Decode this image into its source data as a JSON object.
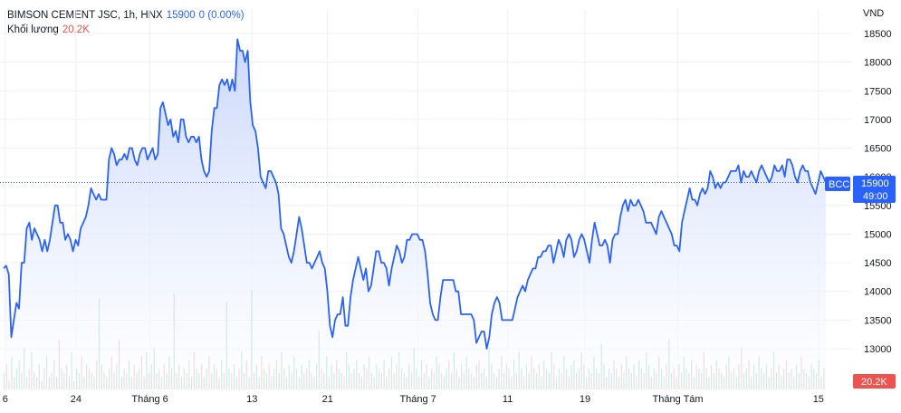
{
  "header": {
    "symbol_label": "BIMSON CEMENT JSC, 1h, HNX",
    "last_price": "15900",
    "change": "0 (0.00%)",
    "volume_label": "Khối lượng",
    "volume_value": "20.2K"
  },
  "price_axis": {
    "unit": "VND",
    "current_symbol_tag": "BCC",
    "current_price_tag": "15900",
    "countdown_tag": "49:00",
    "volume_tag": "20.2K"
  },
  "colors": {
    "line": "#2962ff",
    "area_top": "#c9d6fb",
    "area_bottom": "#ffffff",
    "vol_up": "#26a69a",
    "vol_down": "#ef5350",
    "grid": "#eef0f4"
  },
  "chart_data": {
    "type": "line",
    "title": "BIMSON CEMENT JSC, 1h, HNX",
    "x_tick_labels": [
      "6",
      "24",
      "Tháng 6",
      "13",
      "21",
      "Tháng 7",
      "11",
      "19",
      "Tháng Tám",
      "15"
    ],
    "y_tick_labels": [
      "13000",
      "13500",
      "14000",
      "14500",
      "15000",
      "15500",
      "16000",
      "16500",
      "17000",
      "17500",
      "18000",
      "18500"
    ],
    "ylim": [
      12600,
      18700
    ],
    "last_value": 15900,
    "grid": true,
    "series": [
      {
        "values": [
          14400,
          14450,
          14300,
          13200,
          13500,
          13800,
          13700,
          14500,
          14500,
          15100,
          15200,
          14900,
          15100,
          15000,
          14900,
          14700,
          14900,
          14700,
          14900,
          15200,
          15500,
          15500,
          15200,
          15200,
          14900,
          15000,
          14900,
          14700,
          14900,
          14800,
          15100,
          15200,
          15300,
          15500,
          15800,
          15700,
          15600,
          15700,
          15600,
          15600,
          15600,
          16300,
          16500,
          16400,
          16200,
          16300,
          16300,
          16400,
          16300,
          16500,
          16500,
          16300,
          16200,
          16400,
          16500,
          16500,
          16300,
          16400,
          16500,
          16300,
          16400,
          17200,
          17300,
          17100,
          16900,
          17000,
          16700,
          16800,
          16600,
          17000,
          17000,
          16700,
          16600,
          16700,
          16700,
          16600,
          16700,
          16300,
          16100,
          16000,
          16100,
          16800,
          17200,
          17200,
          17600,
          17700,
          17600,
          17700,
          17500,
          17700,
          17500,
          18400,
          18200,
          18200,
          18000,
          18200,
          17300,
          16900,
          16800,
          16500,
          16000,
          15900,
          15800,
          16100,
          16100,
          16000,
          15900,
          15700,
          15100,
          15000,
          14800,
          14600,
          14500,
          14700,
          15000,
          15300,
          15100,
          14800,
          14500,
          14500,
          14400,
          14500,
          14600,
          14700,
          14500,
          14400,
          14000,
          13400,
          13200,
          13500,
          13600,
          13600,
          13900,
          13400,
          13400,
          13900,
          14200,
          14400,
          14600,
          14400,
          14200,
          14400,
          14000,
          14100,
          14400,
          14700,
          14700,
          14500,
          14500,
          14400,
          14100,
          14400,
          14600,
          14800,
          14700,
          14500,
          14600,
          14900,
          14900,
          15000,
          15000,
          15000,
          14900,
          14900,
          14700,
          14300,
          13800,
          13600,
          13500,
          13500,
          13900,
          14200,
          14200,
          14200,
          14200,
          14200,
          14000,
          14000,
          13600,
          13600,
          13600,
          13600,
          13600,
          13500,
          13100,
          13200,
          13300,
          13300,
          13000,
          13200,
          13600,
          13800,
          13900,
          13800,
          13500,
          13500,
          13500,
          13500,
          13500,
          13700,
          13900,
          14000,
          14100,
          14000,
          14200,
          14300,
          14400,
          14400,
          14600,
          14600,
          14700,
          14700,
          14800,
          14800,
          14500,
          14700,
          14900,
          14800,
          14600,
          14900,
          15000,
          14900,
          14600,
          14700,
          14900,
          15000,
          14900,
          14700,
          14500,
          14900,
          15200,
          15000,
          14800,
          14800,
          14900,
          14800,
          14500,
          14900,
          15000,
          15000,
          15300,
          15500,
          15600,
          15400,
          15600,
          15500,
          15500,
          15600,
          15500,
          15400,
          15200,
          15200,
          15200,
          15100,
          15000,
          15300,
          15400,
          15300,
          15200,
          15100,
          15000,
          14800,
          14800,
          14700,
          15200,
          15400,
          15600,
          15800,
          15600,
          15600,
          15500,
          15700,
          15800,
          15700,
          15800,
          16100,
          16000,
          15800,
          15900,
          15800,
          15900,
          15900,
          16000,
          16100,
          16100,
          16100,
          16200,
          15900,
          16100,
          16000,
          16000,
          16100,
          16000,
          15900,
          16100,
          16200,
          16100,
          16000,
          15900,
          16000,
          16200,
          16100,
          16100,
          16200,
          16000,
          16300,
          16300,
          16200,
          16000,
          15900,
          16100,
          16200,
          16100,
          16100,
          15900,
          15800,
          15700,
          15900,
          16100,
          16000,
          15900
        ]
      }
    ],
    "volume_series": {
      "name": "Khối lượng",
      "values": [
        4,
        6,
        2,
        8,
        3,
        5,
        7,
        4,
        10,
        3,
        5,
        9,
        4,
        3,
        6,
        2,
        5,
        8,
        3,
        4,
        7,
        3,
        12,
        5,
        4,
        6,
        3,
        9,
        2,
        5,
        4,
        8,
        3,
        6,
        5,
        4,
        3,
        7,
        22,
        6,
        4,
        3,
        5,
        8,
        4,
        6,
        12,
        3,
        5,
        4,
        7,
        3,
        6,
        4,
        5,
        8,
        3,
        9,
        4,
        6,
        10,
        4,
        5,
        3,
        6,
        4,
        8,
        5,
        23,
        4,
        6,
        3,
        5,
        4,
        7,
        3,
        9,
        5,
        4,
        6,
        3,
        5,
        8,
        4,
        6,
        5,
        3,
        7,
        4,
        21,
        5,
        4,
        6,
        3,
        5,
        9,
        4,
        7,
        3,
        24,
        4,
        6,
        3,
        8,
        5,
        4,
        6,
        3,
        5,
        7,
        4,
        9,
        5,
        3,
        6,
        4,
        8,
        5,
        3,
        6,
        4,
        5,
        7,
        4,
        3,
        6,
        14,
        5,
        4,
        8,
        3,
        6,
        4,
        7,
        5,
        4,
        3,
        9,
        6,
        4,
        5,
        7,
        4,
        3,
        6,
        5,
        8,
        4,
        3,
        6,
        5,
        4,
        7,
        3,
        5,
        8,
        4,
        6,
        9,
        5,
        4,
        3,
        6,
        4,
        10,
        5,
        3,
        7,
        4,
        6,
        3,
        5,
        4,
        8,
        6,
        4,
        3,
        5,
        7,
        4,
        9,
        5,
        3,
        6,
        4,
        8,
        5,
        4,
        3,
        6,
        7,
        4,
        5,
        3,
        10,
        6,
        4,
        3,
        5,
        8,
        4,
        6,
        5,
        3,
        7,
        4,
        9,
        5,
        3,
        6,
        4,
        8,
        5,
        4,
        6,
        3,
        7,
        5,
        4,
        9,
        6,
        3,
        5,
        4,
        8,
        5,
        3,
        6,
        7,
        4,
        5,
        9,
        6,
        3,
        5,
        4,
        8,
        5,
        4,
        11,
        6,
        3,
        5,
        4,
        7,
        5,
        3,
        6,
        4,
        8,
        5,
        4,
        6,
        3,
        7,
        5,
        4,
        9,
        6,
        3,
        5,
        4,
        8,
        5,
        3,
        6,
        12,
        4,
        5,
        3,
        6,
        4,
        8,
        5,
        4,
        7,
        3,
        6,
        5,
        4,
        9,
        5,
        3,
        6,
        4,
        7,
        5,
        4,
        3,
        6,
        8,
        4,
        5,
        3,
        6,
        10,
        4,
        5,
        7,
        3,
        6,
        4,
        8,
        5,
        4,
        6,
        3,
        5,
        9,
        4,
        6,
        3,
        5,
        7,
        4,
        5,
        3,
        6,
        4,
        8,
        5,
        4,
        3,
        6,
        5,
        4,
        7,
        3,
        5
      ]
    }
  }
}
